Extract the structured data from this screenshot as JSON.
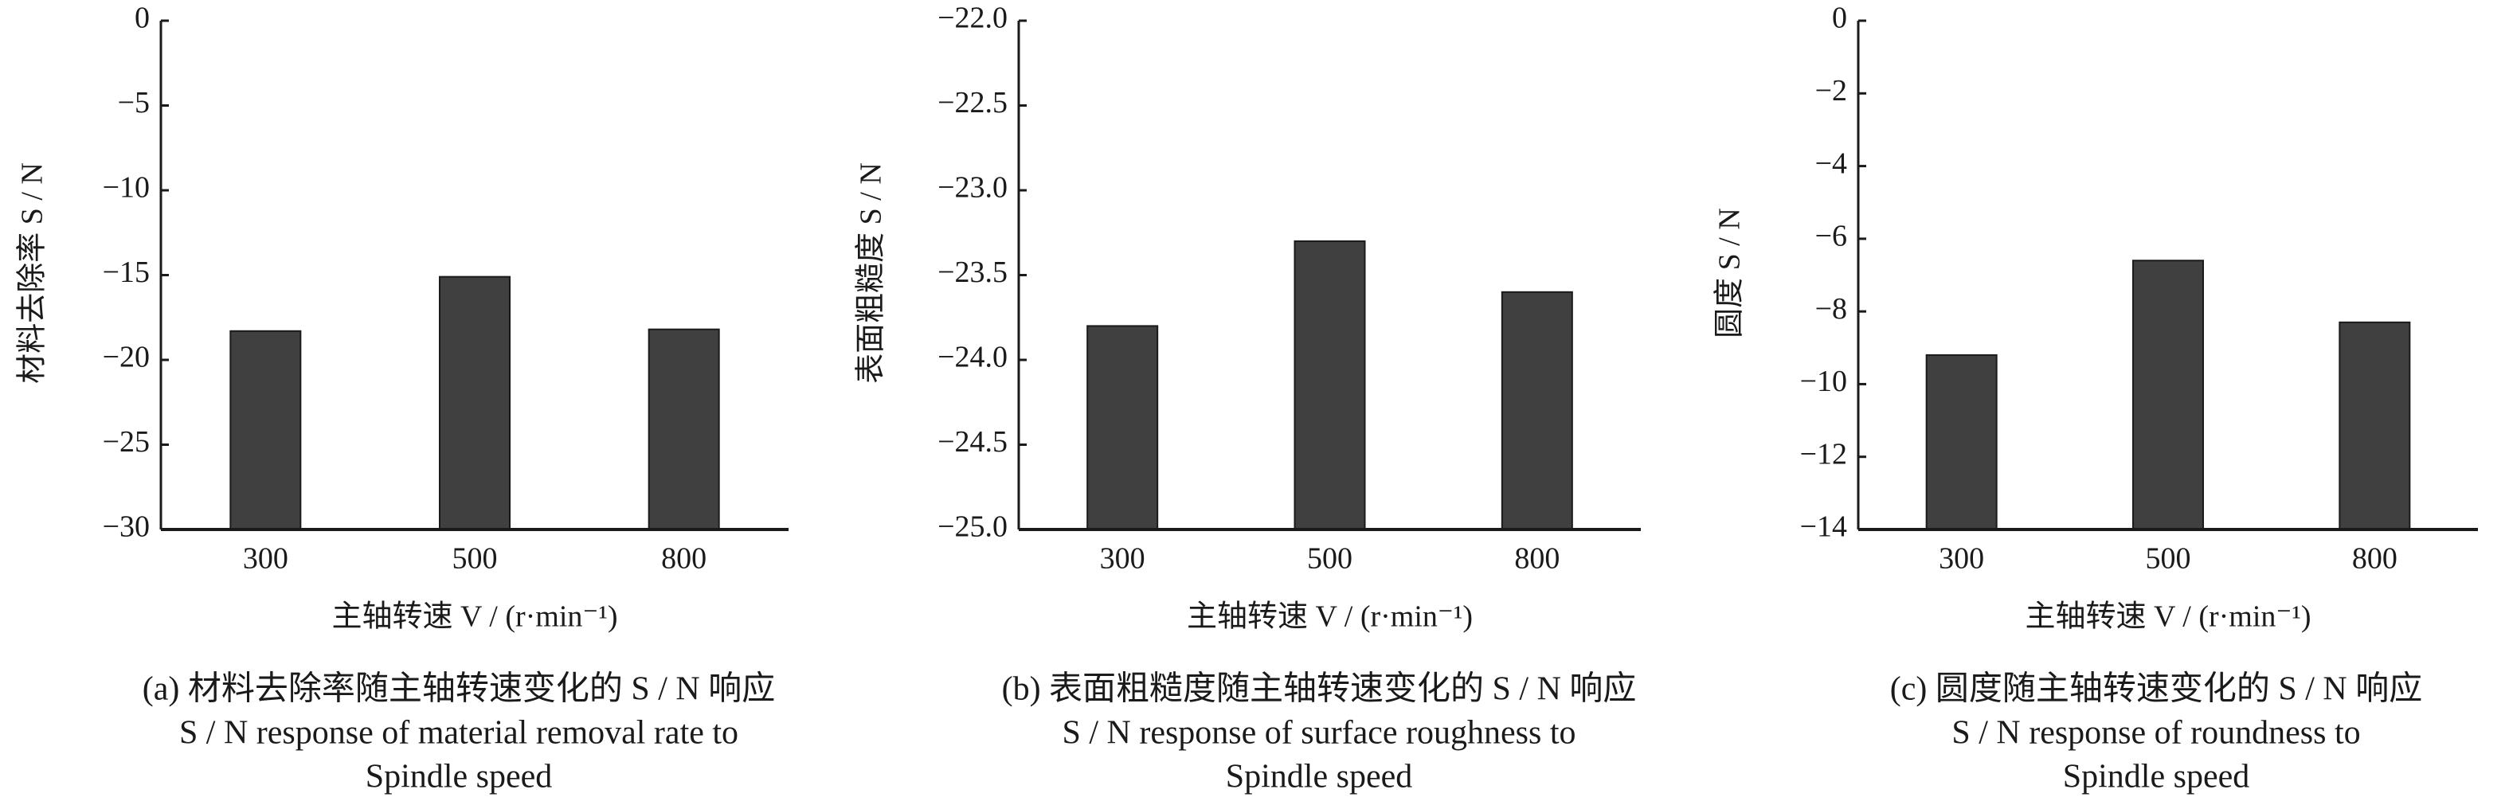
{
  "chart_data": [
    {
      "type": "bar",
      "ylabel": "材料去除率 S / N",
      "xlabel": "主轴转速 V / (r·min⁻¹)",
      "caption": [
        "(a) 材料去除率随主轴转速变化的 S / N 响应",
        "S / N response of material removal rate to",
        "Spindle speed"
      ],
      "categories": [
        "300",
        "500",
        "800"
      ],
      "values": [
        -18.3,
        -15.1,
        -18.2
      ],
      "color": "#404040",
      "ylim": [
        -30,
        0
      ],
      "yticks": [
        {
          "value": -30,
          "label": "−30"
        },
        {
          "value": -25,
          "label": "−25"
        },
        {
          "value": -20,
          "label": "−20"
        },
        {
          "value": -15,
          "label": "−15"
        },
        {
          "value": -10,
          "label": "−10"
        },
        {
          "value": -5,
          "label": "−5"
        },
        0
      ]
    },
    {
      "type": "bar",
      "ylabel": "表面粗糙度 S / N",
      "xlabel": "主轴转速 V / (r·min⁻¹)",
      "caption": [
        "(b) 表面粗糙度随主轴转速变化的 S / N 响应",
        "S / N response of surface roughness to",
        "Spindle speed"
      ],
      "categories": [
        "300",
        "500",
        "800"
      ],
      "values": [
        -23.8,
        -23.3,
        -23.6
      ],
      "color": "#404040",
      "ylim": [
        -25,
        -22
      ],
      "yticks": [
        {
          "value": -25,
          "label": "−25.0"
        },
        {
          "value": -24.5,
          "label": "−24.5"
        },
        {
          "value": -24,
          "label": "−24.0"
        },
        {
          "value": -23.5,
          "label": "−23.5"
        },
        {
          "value": -23,
          "label": "−23.0"
        },
        {
          "value": -22.5,
          "label": "−22.5"
        },
        {
          "value": -22,
          "label": "−22.0"
        }
      ]
    },
    {
      "type": "bar",
      "ylabel": "圆度 S / N",
      "xlabel": "主轴转速 V / (r·min⁻¹)",
      "caption": [
        "(c) 圆度随主轴转速变化的 S / N 响应",
        "S / N response of roundness to",
        "Spindle speed"
      ],
      "categories": [
        "300",
        "500",
        "800"
      ],
      "values": [
        -9.2,
        -6.6,
        -8.3
      ],
      "color": "#404040",
      "ylim": [
        -14,
        0
      ],
      "yticks": [
        {
          "value": -14,
          "label": "−14"
        },
        {
          "value": -12,
          "label": "−12"
        },
        {
          "value": -10,
          "label": "−10"
        },
        {
          "value": -8,
          "label": "−8"
        },
        {
          "value": -6,
          "label": "−6"
        },
        {
          "value": -4,
          "label": "−4"
        },
        {
          "value": -2,
          "label": "−2"
        },
        0
      ]
    }
  ]
}
